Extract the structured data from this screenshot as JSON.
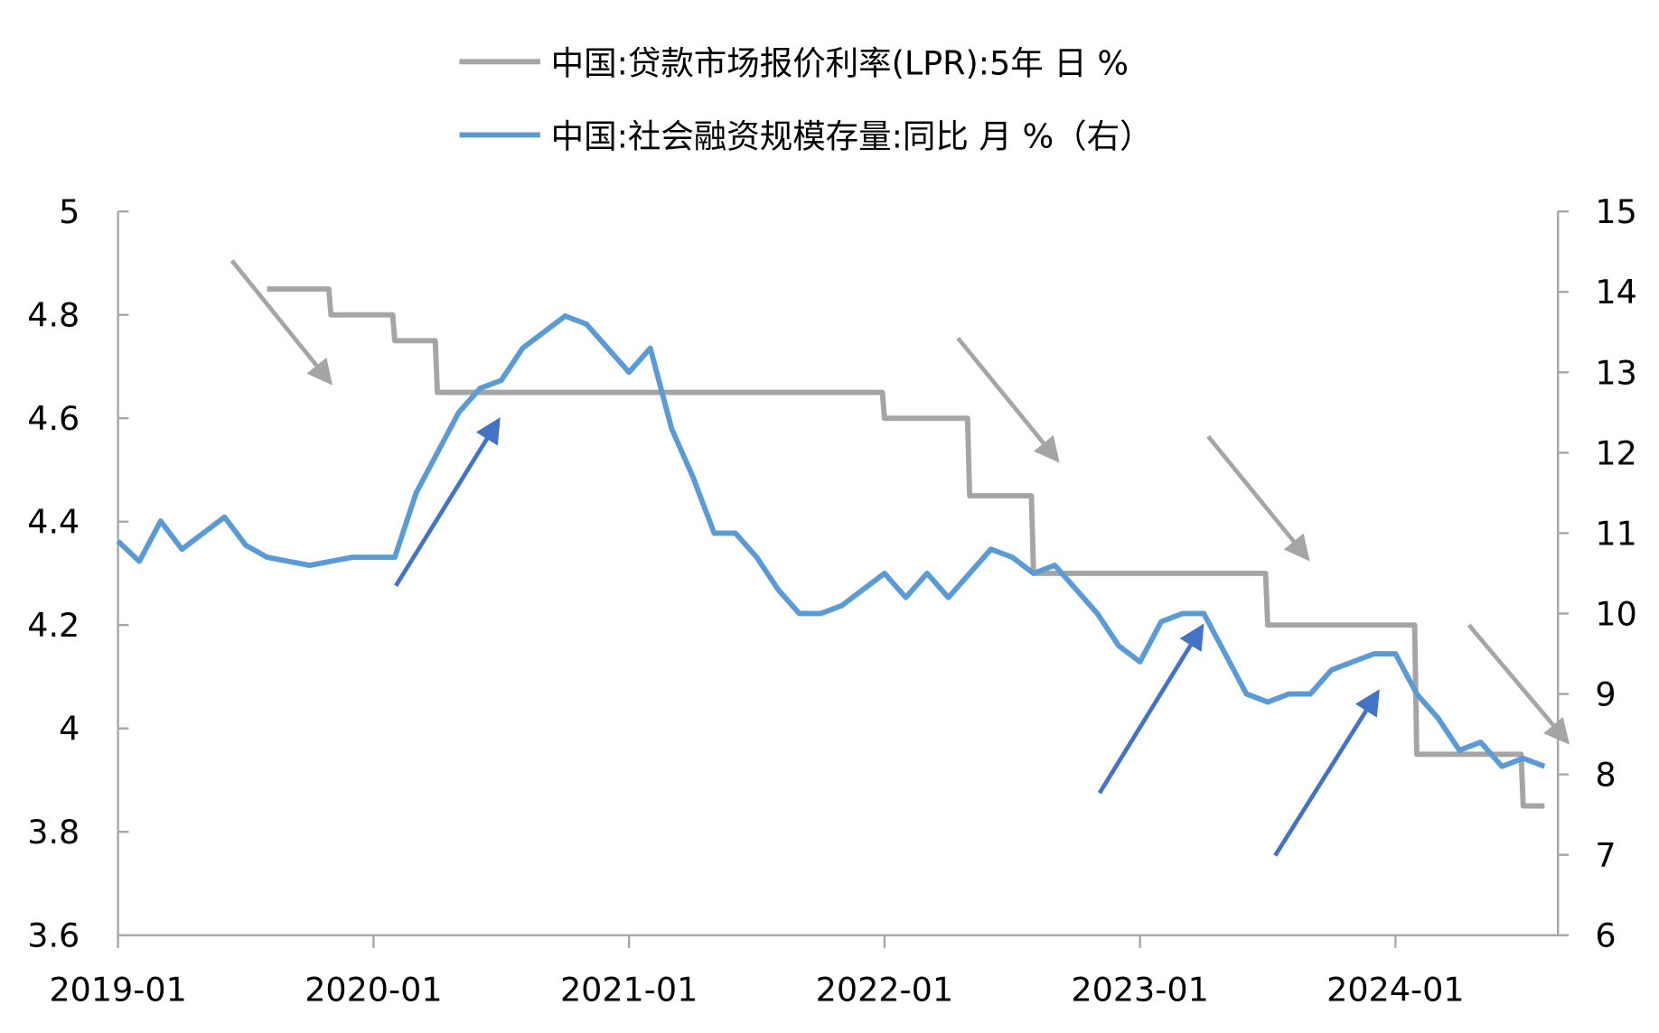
{
  "chart_data": {
    "type": "line",
    "title": "",
    "legend": [
      {
        "label": "中国:贷款市场报价利率(LPR):5年 日 %",
        "color": "#a5a5a5",
        "axis": "left"
      },
      {
        "label": "中国:社会融资规模存量:同比 月 %（右）",
        "color": "#5b9bd5",
        "axis": "right"
      }
    ],
    "legend_placement": "top-center",
    "x_tick_labels": [
      "2019-01",
      "2020-01",
      "2021-01",
      "2022-01",
      "2023-01",
      "2024-01"
    ],
    "x_start": "2019-01",
    "x_end": "2024-08",
    "y_left": {
      "ticks": [
        "3.6",
        "3.8",
        "4",
        "4.2",
        "4.4",
        "4.6",
        "4.8",
        "5"
      ],
      "range": [
        3.6,
        5.0
      ]
    },
    "y_right": {
      "ticks": [
        "6",
        "7",
        "8",
        "9",
        "10",
        "11",
        "12",
        "13",
        "14",
        "15"
      ],
      "range": [
        6,
        15
      ]
    },
    "grid": false,
    "series": [
      {
        "name": "中国:贷款市场报价利率(LPR):5年 日 %",
        "axis": "left",
        "color": "#a5a5a5",
        "values": [
          null,
          null,
          null,
          null,
          null,
          null,
          null,
          4.85,
          4.85,
          4.85,
          4.8,
          4.8,
          4.8,
          4.75,
          4.75,
          4.65,
          4.65,
          4.65,
          4.65,
          4.65,
          4.65,
          4.65,
          4.65,
          4.65,
          4.65,
          4.65,
          4.65,
          4.65,
          4.65,
          4.65,
          4.65,
          4.65,
          4.65,
          4.65,
          4.65,
          4.65,
          4.6,
          4.6,
          4.6,
          4.6,
          4.45,
          4.45,
          4.45,
          4.3,
          4.3,
          4.3,
          4.3,
          4.3,
          4.3,
          4.3,
          4.3,
          4.3,
          4.3,
          4.3,
          4.2,
          4.2,
          4.2,
          4.2,
          4.2,
          4.2,
          4.2,
          3.95,
          3.95,
          3.95,
          3.95,
          3.95,
          3.85,
          3.85
        ]
      },
      {
        "name": "中国:社会融资规模存量:同比 月 %（右）",
        "axis": "right",
        "color": "#5b9bd5",
        "values": [
          10.9,
          10.65,
          11.15,
          10.8,
          11.0,
          11.2,
          10.85,
          10.7,
          10.65,
          10.6,
          10.65,
          10.7,
          10.7,
          10.7,
          11.5,
          12.0,
          12.5,
          12.8,
          12.9,
          13.3,
          13.5,
          13.7,
          13.6,
          13.3,
          13.0,
          13.3,
          12.3,
          11.7,
          11.0,
          11.0,
          10.7,
          10.3,
          10.0,
          10.0,
          10.1,
          10.3,
          10.5,
          10.2,
          10.5,
          10.2,
          10.5,
          10.8,
          10.7,
          10.5,
          10.6,
          10.3,
          10.0,
          9.6,
          9.4,
          9.9,
          10.0,
          10.0,
          9.5,
          9.0,
          8.9,
          9.0,
          9.0,
          9.3,
          9.4,
          9.5,
          9.5,
          9.0,
          8.7,
          8.3,
          8.4,
          8.1,
          8.2,
          8.1
        ]
      }
    ],
    "annotations": [
      {
        "type": "arrow",
        "color": "#a5a5a5",
        "from": [
          5.35,
          4.905
        ],
        "to": [
          9.95,
          4.67
        ]
      },
      {
        "type": "arrow",
        "color": "#a5a5a5",
        "from": [
          39.45,
          4.755
        ],
        "to": [
          44.1,
          4.52
        ]
      },
      {
        "type": "arrow",
        "color": "#a5a5a5",
        "from": [
          51.2,
          4.565
        ],
        "to": [
          55.85,
          4.33
        ]
      },
      {
        "type": "arrow",
        "color": "#a5a5a5",
        "from": [
          63.45,
          4.2
        ],
        "to": [
          68.05,
          3.975
        ]
      },
      {
        "type": "arrow",
        "color": "#4472c4",
        "from": [
          13.05,
          4.276
        ],
        "to": [
          17.85,
          4.595
        ]
      },
      {
        "type": "arrow",
        "color": "#4472c4",
        "from": [
          46.1,
          3.875
        ],
        "to": [
          50.9,
          4.196
        ]
      },
      {
        "type": "arrow",
        "color": "#4472c4",
        "from": [
          54.35,
          3.754
        ],
        "to": [
          59.15,
          4.069
        ]
      }
    ]
  }
}
